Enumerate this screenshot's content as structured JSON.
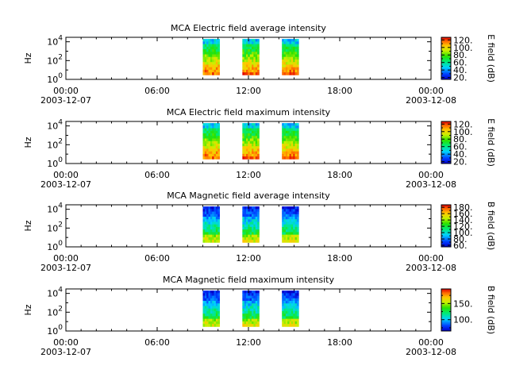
{
  "chart_data": [
    {
      "type": "heatmap",
      "title": "MCA  Electric field average intensity",
      "ylabel": "Hz",
      "yscale": "log",
      "y_ticks": [
        {
          "base": "10",
          "exp": "0"
        },
        {
          "base": "10",
          "exp": "2"
        },
        {
          "base": "10",
          "exp": "4"
        }
      ],
      "x_ticks": [
        {
          "time": "00:00",
          "date": "2003-12-07"
        },
        {
          "time": "06:00",
          "date": ""
        },
        {
          "time": "12:00",
          "date": ""
        },
        {
          "time": "18:00",
          "date": ""
        },
        {
          "time": "00:00",
          "date": "2003-12-08"
        }
      ],
      "x_range_hours": [
        0,
        24
      ],
      "y_range_hz": [
        1,
        30000
      ],
      "data_blocks_hours": [
        [
          9.0,
          10.1
        ],
        [
          11.6,
          12.7
        ],
        [
          14.2,
          15.3
        ]
      ],
      "data_freq_range_hz": [
        3,
        20000
      ],
      "pattern": "electric",
      "colorbar": {
        "label": "E field (dB)",
        "range": [
          15,
          127
        ],
        "tick_values": [
          20,
          40,
          60,
          80,
          100,
          120
        ],
        "tick_labels": [
          "20.",
          "40.",
          "60.",
          "80.",
          "100.",
          "120."
        ],
        "minor_values": [
          30,
          50,
          70,
          90,
          110
        ]
      }
    },
    {
      "type": "heatmap",
      "title": "MCA  Electric field maximum intensity",
      "ylabel": "Hz",
      "yscale": "log",
      "y_ticks": [
        {
          "base": "10",
          "exp": "0"
        },
        {
          "base": "10",
          "exp": "2"
        },
        {
          "base": "10",
          "exp": "4"
        }
      ],
      "x_ticks": [
        {
          "time": "00:00",
          "date": "2003-12-07"
        },
        {
          "time": "06:00",
          "date": ""
        },
        {
          "time": "12:00",
          "date": ""
        },
        {
          "time": "18:00",
          "date": ""
        },
        {
          "time": "00:00",
          "date": "2003-12-08"
        }
      ],
      "x_range_hours": [
        0,
        24
      ],
      "y_range_hz": [
        1,
        30000
      ],
      "data_blocks_hours": [
        [
          9.0,
          10.1
        ],
        [
          11.6,
          12.7
        ],
        [
          14.2,
          15.3
        ]
      ],
      "data_freq_range_hz": [
        3,
        20000
      ],
      "pattern": "electric",
      "colorbar": {
        "label": "E field (dB)",
        "range": [
          15,
          127
        ],
        "tick_values": [
          20,
          40,
          60,
          80,
          100,
          120
        ],
        "tick_labels": [
          "20.",
          "40.",
          "60.",
          "80.",
          "100.",
          "120."
        ],
        "minor_values": [
          30,
          50,
          70,
          90,
          110
        ]
      }
    },
    {
      "type": "heatmap",
      "title": "MCA  Magnetic field average intensity",
      "ylabel": "Hz",
      "yscale": "log",
      "y_ticks": [
        {
          "base": "10",
          "exp": "0"
        },
        {
          "base": "10",
          "exp": "2"
        },
        {
          "base": "10",
          "exp": "4"
        }
      ],
      "x_ticks": [
        {
          "time": "00:00",
          "date": "2003-12-07"
        },
        {
          "time": "06:00",
          "date": ""
        },
        {
          "time": "12:00",
          "date": ""
        },
        {
          "time": "18:00",
          "date": ""
        },
        {
          "time": "00:00",
          "date": "2003-12-08"
        }
      ],
      "x_range_hours": [
        0,
        24
      ],
      "y_range_hz": [
        1,
        30000
      ],
      "data_blocks_hours": [
        [
          9.0,
          10.1
        ],
        [
          11.6,
          12.7
        ],
        [
          14.2,
          15.3
        ]
      ],
      "data_freq_range_hz": [
        3,
        20000
      ],
      "pattern": "magnetic",
      "colorbar": {
        "label": "B field (dB)",
        "range": [
          55,
          188
        ],
        "tick_values": [
          60,
          80,
          100,
          120,
          140,
          160,
          180
        ],
        "tick_labels": [
          "60.",
          "80.",
          "100.",
          "120.",
          "140.",
          "160.",
          "180."
        ],
        "minor_values": [
          70,
          90,
          110,
          130,
          150,
          170
        ]
      }
    },
    {
      "type": "heatmap",
      "title": "MCA  Magnetic field maximum intensity",
      "ylabel": "Hz",
      "yscale": "log",
      "y_ticks": [
        {
          "base": "10",
          "exp": "0"
        },
        {
          "base": "10",
          "exp": "2"
        },
        {
          "base": "10",
          "exp": "4"
        }
      ],
      "x_ticks": [
        {
          "time": "00:00",
          "date": "2003-12-07"
        },
        {
          "time": "06:00",
          "date": ""
        },
        {
          "time": "12:00",
          "date": ""
        },
        {
          "time": "18:00",
          "date": ""
        },
        {
          "time": "00:00",
          "date": "2003-12-08"
        }
      ],
      "x_range_hours": [
        0,
        24
      ],
      "y_range_hz": [
        1,
        30000
      ],
      "data_blocks_hours": [
        [
          9.0,
          10.1
        ],
        [
          11.6,
          12.7
        ],
        [
          14.2,
          15.3
        ]
      ],
      "data_freq_range_hz": [
        3,
        20000
      ],
      "pattern": "magnetic",
      "colorbar": {
        "label": "B field (dB)",
        "range": [
          65,
          195
        ],
        "tick_values": [
          100,
          150
        ],
        "tick_labels": [
          "100.",
          "150."
        ],
        "minor_values": [
          75,
          125,
          175
        ]
      }
    }
  ]
}
